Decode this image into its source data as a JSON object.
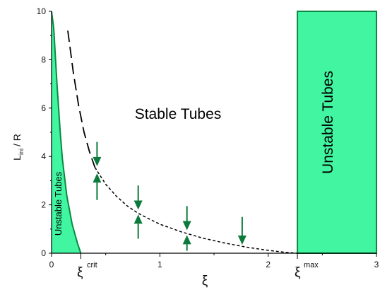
{
  "chart_data": {
    "type": "line",
    "xlabel": "ξ",
    "ylabel_main": "L",
    "ylabel_sub": "ini",
    "ylabel_rest": "/ R",
    "xlim": [
      0,
      3
    ],
    "ylim": [
      0,
      10
    ],
    "x_ticks": [
      0,
      1,
      2,
      3
    ],
    "y_ticks": [
      0,
      2,
      4,
      6,
      8,
      10
    ],
    "colors": {
      "region_fill": "#42f5a0",
      "region_edge": "#0a8a44",
      "arrow": "#0b7a3b",
      "curve": "#000000"
    },
    "regions": [
      {
        "label": "Unstable Tubes",
        "boundary_x": [
          0.0,
          0.02,
          0.05,
          0.08,
          0.1,
          0.14,
          0.19,
          0.24,
          0.27
        ],
        "boundary_y": [
          10,
          9.3,
          7.0,
          5.0,
          3.9,
          2.4,
          1.2,
          0.4,
          0.0
        ]
      },
      {
        "label": "Unstable Tubes",
        "x_from": 2.27,
        "x_to": 3,
        "y_from": 0,
        "y_to": 10
      }
    ],
    "stable_label": "Stable Tubes",
    "markers": [
      {
        "label": "ξ",
        "sup": "crit",
        "x": 0.27
      },
      {
        "label": "ξ",
        "sup": "max",
        "x": 2.27
      }
    ],
    "series": [
      {
        "style": "long-dash",
        "x": [
          0.15,
          0.2,
          0.25,
          0.3,
          0.35,
          0.4
        ],
        "y": [
          9.2,
          7.5,
          6.1,
          5.0,
          4.2,
          3.55
        ]
      },
      {
        "style": "short-dash",
        "x": [
          0.4,
          0.5,
          0.6,
          0.7,
          0.8,
          0.9,
          1.0,
          1.2,
          1.4,
          1.6,
          1.8,
          2.0,
          2.15,
          2.27
        ],
        "y": [
          3.55,
          2.85,
          2.35,
          1.95,
          1.65,
          1.42,
          1.2,
          0.88,
          0.62,
          0.42,
          0.25,
          0.12,
          0.04,
          0.0
        ]
      }
    ],
    "arrows": [
      {
        "x": 0.42,
        "y_from": 4.6,
        "y_to": 3.6
      },
      {
        "x": 0.42,
        "y_from": 2.2,
        "y_to": 3.3
      },
      {
        "x": 0.8,
        "y_from": 2.8,
        "y_to": 1.8
      },
      {
        "x": 0.8,
        "y_from": 0.6,
        "y_to": 1.6
      },
      {
        "x": 1.25,
        "y_from": 1.95,
        "y_to": 0.95
      },
      {
        "x": 1.25,
        "y_from": 0.1,
        "y_to": 0.75
      },
      {
        "x": 1.76,
        "y_from": 1.5,
        "y_to": 0.35
      }
    ]
  }
}
